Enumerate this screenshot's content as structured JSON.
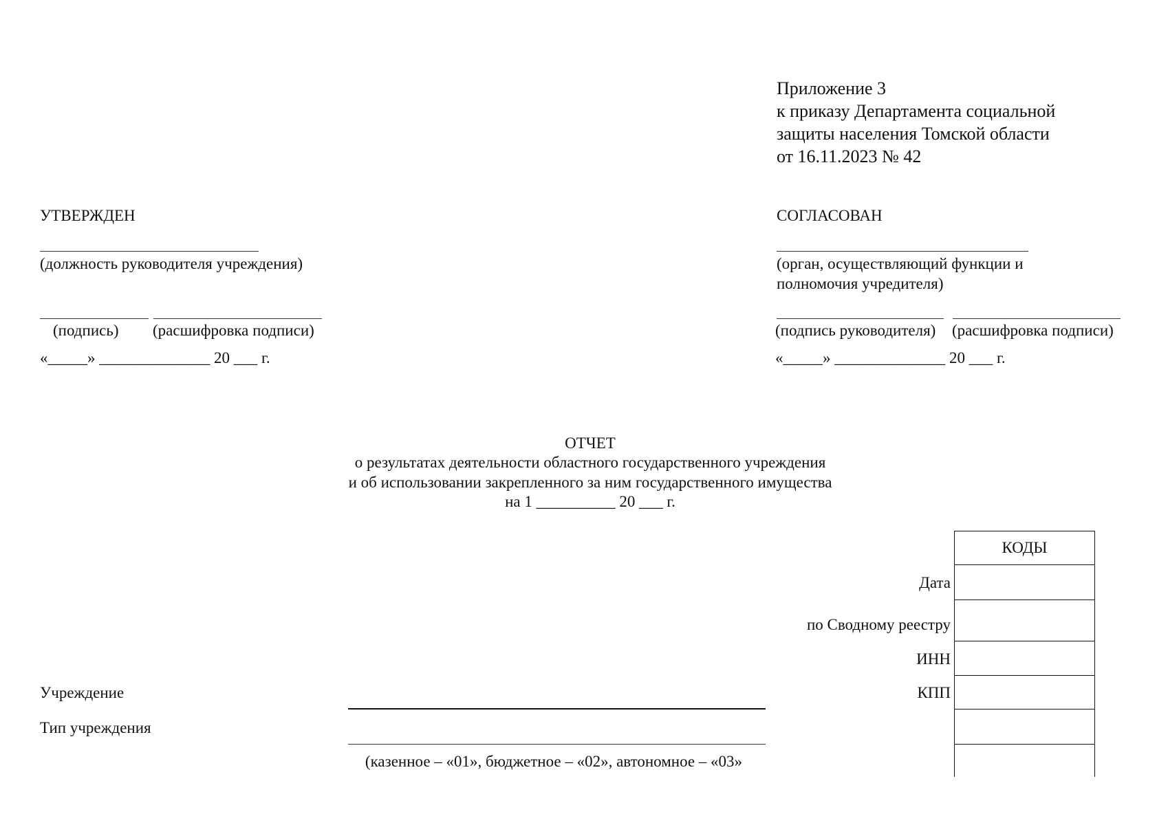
{
  "appendix": {
    "lines": [
      "Приложение 3",
      "к приказу Департамента социальной",
      "защиты населения Томской области",
      "от 16.11.2023 № 42"
    ]
  },
  "approved": {
    "title": "УТВЕРЖДЕН",
    "position_caption": "(должность руководителя учреждения)",
    "signature_caption": "(подпись)",
    "decoding_caption": "(расшифровка подписи)",
    "date_line": "«_____» ______________ 20 ___ г."
  },
  "agreed": {
    "title": "СОГЛАСОВАН",
    "body_caption_1": "(орган, осуществляющий функции и",
    "body_caption_2": "полномочия учредителя)",
    "signature_caption": "(подпись руководителя)",
    "decoding_caption": "(расшифровка подписи)",
    "date_line": "«_____» ______________ 20 ___ г."
  },
  "report": {
    "title": "ОТЧЕТ",
    "line1": "о результатах деятельности областного государственного учреждения",
    "line2": "и об использовании закрепленного за ним государственного имущества",
    "line3": "на 1 __________ 20 ___ г."
  },
  "codes": {
    "header": "КОДЫ",
    "labels": [
      "Дата",
      "по Сводному реестру",
      "ИНН",
      "КПП"
    ]
  },
  "fields": {
    "institution": "Учреждение",
    "institution_type": "Тип учреждения",
    "type_hint": "(казенное – «01», бюджетное – «02», автономное – «03»"
  }
}
